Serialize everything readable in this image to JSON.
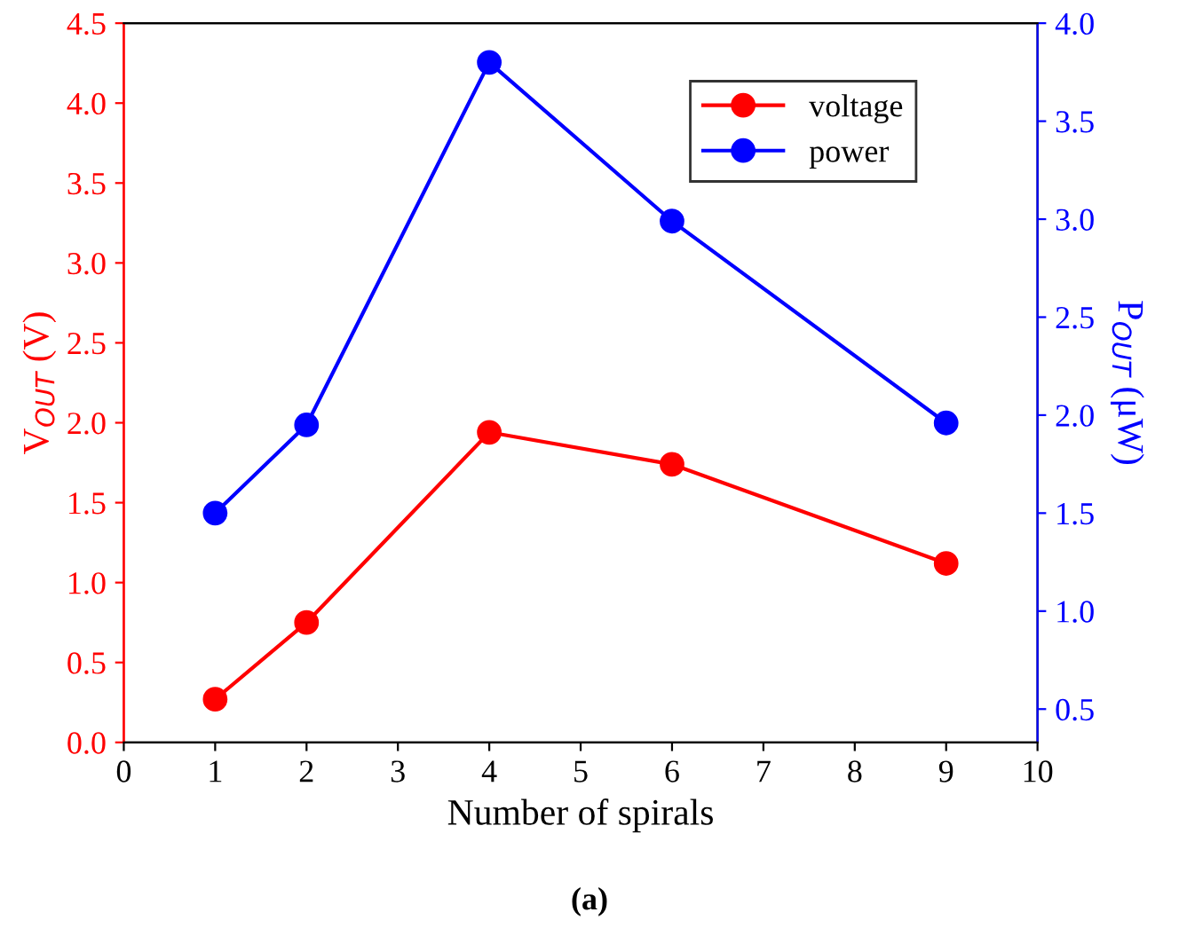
{
  "chart_data": {
    "type": "line",
    "xlabel": "Number of spirals",
    "ylabel": "V$_{OUT}$ (V)",
    "y2label": "P$_{OUT}$ (μW)",
    "x": [
      1,
      2,
      4,
      6,
      9
    ],
    "series": [
      {
        "name": "voltage",
        "color": "#ff0000",
        "values": [
          0.27,
          0.75,
          1.94,
          1.74,
          1.12
        ]
      },
      {
        "name": "power",
        "color": "#0000ff",
        "axis": "y2",
        "values": [
          1.5,
          1.95,
          3.8,
          2.99,
          1.96
        ]
      }
    ],
    "xlim": [
      0,
      10
    ],
    "xticks": [
      0,
      1,
      2,
      3,
      4,
      5,
      6,
      7,
      8,
      9,
      10
    ],
    "ylim": [
      0,
      4.5
    ],
    "yticks": [
      {
        "value": 0,
        "label": "0.0"
      },
      {
        "value": 0.5,
        "label": "0.5"
      },
      {
        "value": 1,
        "label": "1.0"
      },
      {
        "value": 1.5,
        "label": "1.5"
      },
      {
        "value": 2,
        "label": "2.0"
      },
      {
        "value": 2.5,
        "label": "2.5"
      },
      {
        "value": 3,
        "label": "3.0"
      },
      {
        "value": 3.5,
        "label": "3.5"
      },
      {
        "value": 4,
        "label": "4.0"
      },
      {
        "value": 4.5,
        "label": "4.5"
      }
    ],
    "y2lim": [
      0.33,
      4.0
    ],
    "y2ticks": [
      {
        "value": 0.5,
        "label": "0.5"
      },
      {
        "value": 1,
        "label": "1.0"
      },
      {
        "value": 1.5,
        "label": "1.5"
      },
      {
        "value": 2,
        "label": "2.0"
      },
      {
        "value": 2.5,
        "label": "2.5"
      },
      {
        "value": 3,
        "label": "3.0"
      },
      {
        "value": 3.5,
        "label": "3.5"
      },
      {
        "value": 4,
        "label": "4.0"
      }
    ],
    "marker": "circle",
    "line_style": "solid",
    "legend": "top right",
    "grid": false,
    "annotations": [
      "(a)"
    ]
  }
}
